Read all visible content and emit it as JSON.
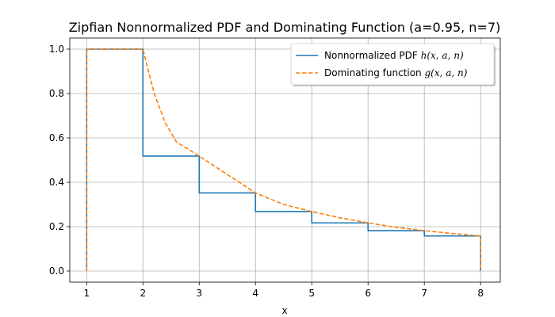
{
  "chart_data": {
    "type": "line",
    "title": "Zipfian Nonnormalized PDF and Dominating Function (a=0.95, n=7)",
    "xlabel": "x",
    "ylabel": "",
    "xlim": [
      0.7,
      8.35
    ],
    "ylim": [
      -0.05,
      1.05
    ],
    "xticks": [
      1,
      2,
      3,
      4,
      5,
      6,
      7,
      8
    ],
    "yticks": [
      0.0,
      0.2,
      0.4,
      0.6,
      0.8,
      1.0
    ],
    "ytick_labels": [
      "0.0",
      "0.2",
      "0.4",
      "0.6",
      "0.8",
      "1.0"
    ],
    "grid": true,
    "legend_position": "top-right",
    "series": [
      {
        "name": "Nonnormalized PDF",
        "name_math": "h(x, a, n)",
        "style": "step",
        "color": "#1f77b4",
        "points": [
          [
            1,
            0
          ],
          [
            1,
            1
          ],
          [
            2,
            1
          ],
          [
            2,
            0.518
          ],
          [
            3,
            0.518
          ],
          [
            3,
            0.352
          ],
          [
            4,
            0.352
          ],
          [
            4,
            0.268
          ],
          [
            5,
            0.268
          ],
          [
            5,
            0.217
          ],
          [
            6,
            0.217
          ],
          [
            6,
            0.182
          ],
          [
            7,
            0.182
          ],
          [
            7,
            0.158
          ],
          [
            8,
            0.158
          ],
          [
            8,
            0
          ]
        ]
      },
      {
        "name": "Dominating function",
        "name_math": "g(x, a, n)",
        "style": "dashed",
        "color": "#ff7f0e",
        "points": [
          [
            1,
            0
          ],
          [
            1,
            1
          ],
          [
            2,
            1
          ],
          [
            2.2,
            0.8
          ],
          [
            2.4,
            0.666
          ],
          [
            2.6,
            0.58
          ],
          [
            2.8,
            0.55
          ],
          [
            3,
            0.518
          ],
          [
            3.5,
            0.435
          ],
          [
            4,
            0.352
          ],
          [
            4.5,
            0.3
          ],
          [
            5,
            0.268
          ],
          [
            5.5,
            0.24
          ],
          [
            6,
            0.217
          ],
          [
            6.5,
            0.197
          ],
          [
            7,
            0.182
          ],
          [
            7.5,
            0.169
          ],
          [
            8,
            0.158
          ],
          [
            8,
            0
          ]
        ]
      }
    ]
  }
}
